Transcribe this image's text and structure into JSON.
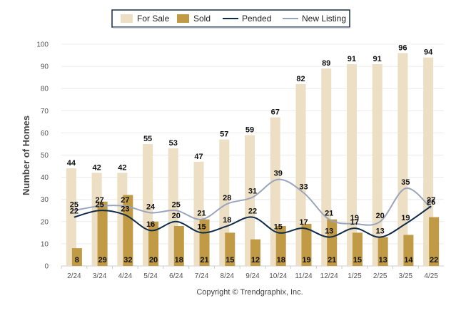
{
  "chart_data": {
    "type": "bar",
    "categories": [
      "2/24",
      "3/24",
      "4/24",
      "5/24",
      "6/24",
      "7/24",
      "8/24",
      "9/24",
      "10/24",
      "11/24",
      "12/24",
      "1/25",
      "2/25",
      "3/25",
      "4/25"
    ],
    "series": [
      {
        "name": "For Sale",
        "kind": "bar",
        "color": "#ecdfc3",
        "values": [
          44,
          42,
          42,
          55,
          53,
          47,
          57,
          59,
          67,
          82,
          89,
          91,
          91,
          96,
          94
        ]
      },
      {
        "name": "Sold",
        "kind": "bar",
        "color": "#c09a45",
        "values": [
          8,
          29,
          32,
          20,
          18,
          21,
          15,
          12,
          18,
          19,
          21,
          15,
          13,
          14,
          22
        ]
      },
      {
        "name": "Pended",
        "kind": "line",
        "color": "#0f2b4a",
        "values": [
          22,
          25,
          23,
          16,
          20,
          15,
          18,
          22,
          15,
          17,
          13,
          17,
          13,
          19,
          27
        ]
      },
      {
        "name": "New Listing",
        "kind": "line",
        "color": "#9aa4bd",
        "values": [
          25,
          27,
          27,
          24,
          25,
          21,
          28,
          31,
          39,
          33,
          21,
          19,
          20,
          35,
          26
        ]
      }
    ],
    "ylabel": "Number of Homes",
    "xlabel": "",
    "ylim": [
      0,
      100
    ],
    "yticks": [
      0,
      10,
      20,
      30,
      40,
      50,
      60,
      70,
      80,
      90,
      100
    ],
    "grid": true,
    "legend_position": "top-center"
  },
  "footer": {
    "copyright": "Copyright © Trendgraphix, Inc."
  }
}
